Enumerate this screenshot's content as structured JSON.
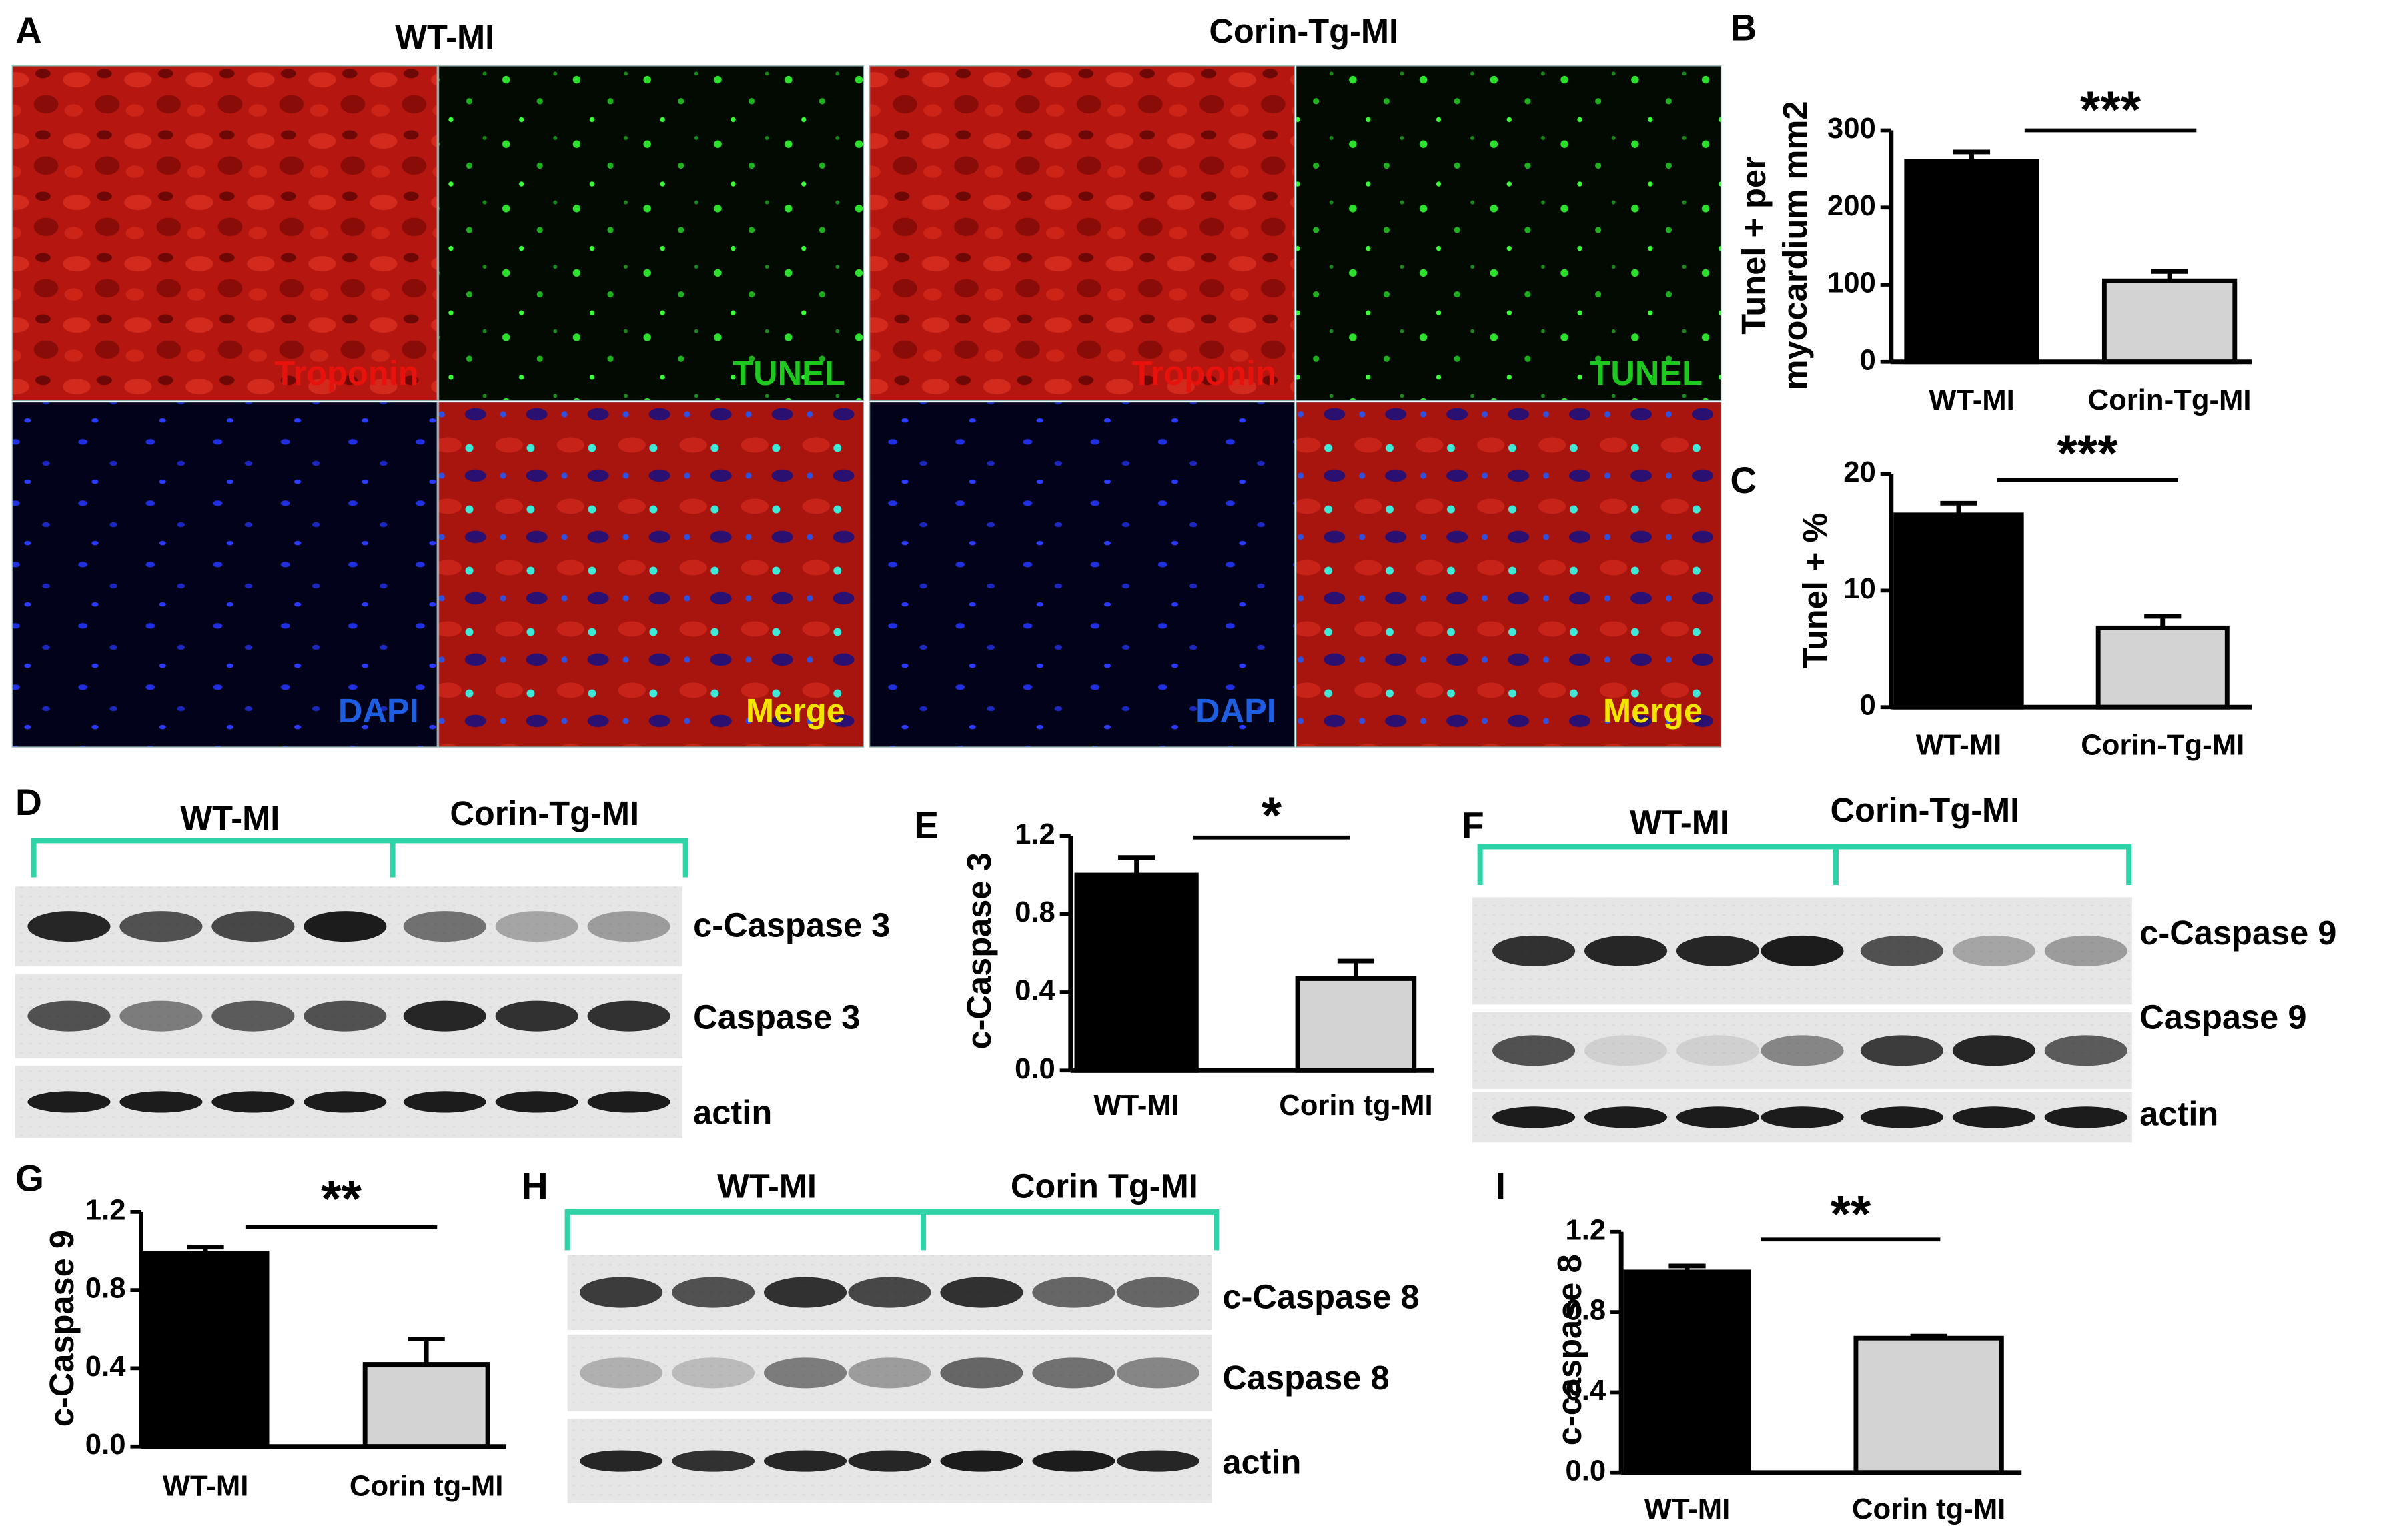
{
  "figure": {
    "microscopy": {
      "panel": "A",
      "groups": [
        {
          "title": "WT-MI",
          "labels": [
            "Troponin",
            "TUNEL",
            "DAPI",
            "Merge"
          ]
        },
        {
          "title": "Corin-Tg-MI",
          "labels": [
            "Troponin",
            "TUNEL",
            "DAPI",
            "Merge"
          ]
        }
      ]
    },
    "blots": [
      {
        "panel": "D",
        "groups": [
          "WT-MI",
          "Corin-Tg-MI"
        ],
        "rows": [
          "c-Caspase 3",
          "Caspase 3",
          "actin"
        ]
      },
      {
        "panel": "F",
        "groups": [
          "WT-MI",
          "Corin-Tg-MI"
        ],
        "rows": [
          "c-Caspase 9",
          "Caspase 9",
          "actin"
        ]
      },
      {
        "panel": "H",
        "groups": [
          "WT-MI",
          "Corin Tg-MI"
        ],
        "rows": [
          "c-Caspase 8",
          "Caspase 8",
          "actin"
        ]
      }
    ]
  },
  "chart_data": [
    {
      "type": "bar",
      "panel": "B",
      "y_label": [
        "Tunel + per",
        "myocardium mm2"
      ],
      "categories": [
        "WT-MI",
        "Corin-Tg-MI"
      ],
      "values": [
        260,
        105
      ],
      "errors": [
        12,
        12
      ],
      "colors": [
        "#000000",
        "#d3d3d3"
      ],
      "ylim": [
        0,
        300
      ],
      "yticks": [
        0,
        100,
        200,
        300
      ],
      "annotation": "***"
    },
    {
      "type": "bar",
      "panel": "C",
      "y_label": [
        "Tunel + %"
      ],
      "categories": [
        "WT-MI",
        "Corin-Tg-MI"
      ],
      "values": [
        16.5,
        6.8
      ],
      "errors": [
        1,
        1
      ],
      "colors": [
        "#000000",
        "#d3d3d3"
      ],
      "ylim": [
        0,
        20
      ],
      "yticks": [
        0,
        10,
        20
      ],
      "annotation": "***"
    },
    {
      "type": "bar",
      "panel": "E",
      "y_label": [
        "c-Caspase 3"
      ],
      "categories": [
        "WT-MI",
        "Corin tg-MI"
      ],
      "values": [
        1.0,
        0.47
      ],
      "errors": [
        0.09,
        0.09
      ],
      "colors": [
        "#000000",
        "#d3d3d3"
      ],
      "ylim": [
        0,
        1.2
      ],
      "yticks": [
        {
          "value": 0,
          "label": "0.0"
        },
        0.4,
        0.8,
        1.2
      ],
      "annotation": "*"
    },
    {
      "type": "bar",
      "panel": "G",
      "y_label": [
        "c-Caspase 9"
      ],
      "categories": [
        "WT-MI",
        "Corin tg-MI"
      ],
      "values": [
        0.99,
        0.42
      ],
      "errors": [
        0.03,
        0.13
      ],
      "colors": [
        "#000000",
        "#d3d3d3"
      ],
      "ylim": [
        0,
        1.2
      ],
      "yticks": [
        {
          "value": 0,
          "label": "0.0"
        },
        0.4,
        0.8,
        1.2
      ],
      "annotation": "**"
    },
    {
      "type": "bar",
      "panel": "I",
      "y_label": [
        "c-caspase 8"
      ],
      "categories": [
        "WT-MI",
        "Corin tg-MI"
      ],
      "values": [
        1.0,
        0.67
      ],
      "errors": [
        0.03,
        0.01
      ],
      "colors": [
        "#000000",
        "#d3d3d3"
      ],
      "ylim": [
        0,
        1.2
      ],
      "yticks": [
        {
          "value": 0,
          "label": "0.0"
        },
        0.4,
        0.8,
        1.2
      ],
      "annotation": "**"
    }
  ]
}
